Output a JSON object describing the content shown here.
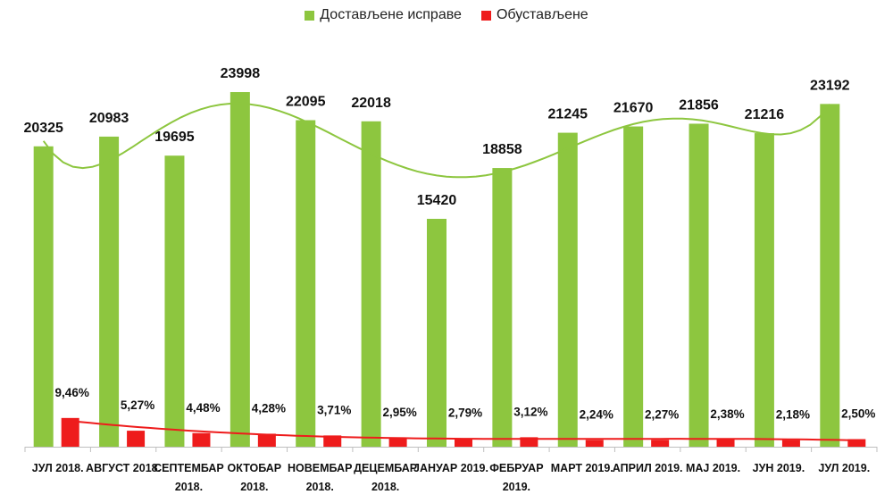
{
  "chart_data": {
    "type": "bar",
    "categories": [
      [
        "ЈУЛ 2018."
      ],
      [
        "АВГУСТ 2018."
      ],
      [
        "СЕПТЕМБАР",
        "2018."
      ],
      [
        "ОКТОБАР",
        "2018."
      ],
      [
        "НОВЕМБАР",
        "2018."
      ],
      [
        "ДЕЦЕМБАР",
        "2018."
      ],
      [
        "ЈАНУАР 2019."
      ],
      [
        "ФЕБРУАР",
        "2019."
      ],
      [
        "МАРТ 2019."
      ],
      [
        "АПРИЛ 2019."
      ],
      [
        "МАЈ 2019."
      ],
      [
        "ЈУН 2019."
      ],
      [
        "ЈУЛ 2019."
      ]
    ],
    "series": [
      {
        "name": "Достављене исправе",
        "color": "#8dc63f",
        "values": [
          20325,
          20983,
          19695,
          23998,
          22095,
          22018,
          15420,
          18858,
          21245,
          21670,
          21856,
          21216,
          23192
        ],
        "labels": [
          "20325",
          "20983",
          "19695",
          "23998",
          "22095",
          "22018",
          "15420",
          "18858",
          "21245",
          "21670",
          "21856",
          "21216",
          "23192"
        ]
      },
      {
        "name": "Обустављене",
        "color": "#ee1c1c",
        "values": [
          9.46,
          5.27,
          4.48,
          4.28,
          3.71,
          2.95,
          2.79,
          3.12,
          2.24,
          2.27,
          2.38,
          2.18,
          2.5
        ],
        "labels": [
          "9,46%",
          "5,27%",
          "4,48%",
          "4,28%",
          "3,71%",
          "2,95%",
          "2,79%",
          "3,12%",
          "2,24%",
          "2,27%",
          "2,38%",
          "2,18%",
          "2,50%"
        ]
      }
    ],
    "trendlines": [
      {
        "series": "Достављене исправе",
        "color": "#8dc63f",
        "kind": "polynomial"
      },
      {
        "series": "Обустављене",
        "color": "#ee1c1c",
        "kind": "polynomial"
      }
    ],
    "ylim": [
      0,
      24000
    ],
    "grid": false,
    "legend": "top-center"
  }
}
